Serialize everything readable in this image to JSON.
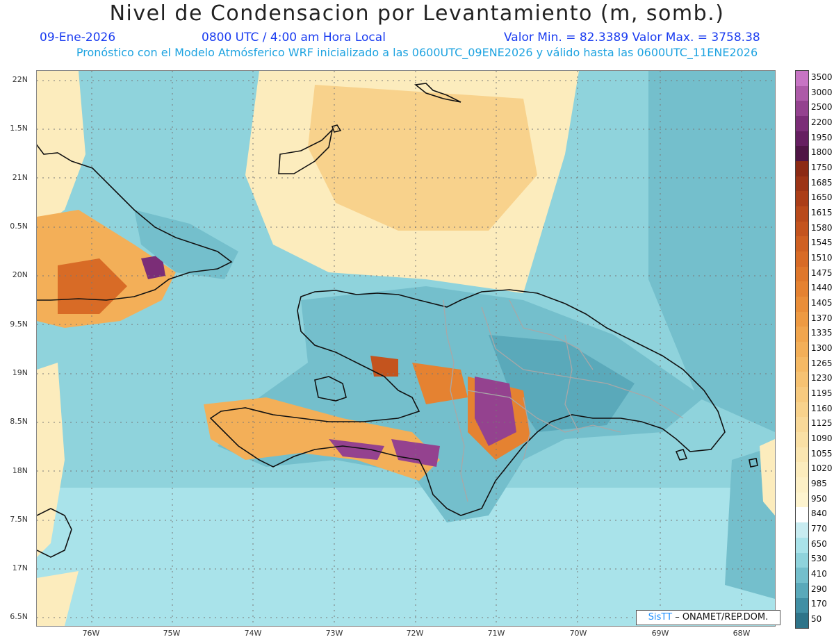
{
  "title": "Nivel de Condensacion por Levantamiento (m, somb.)",
  "date_label": "09-Ene-2026",
  "time_label": "0800 UTC / 4:00 am Hora Local",
  "value_range_label": "Valor Min. = 82.3389   Valor Max. = 3758.38",
  "forecast_label": "Pronóstico con el Modelo Atmósferico WRF inicializado a las 0600UTC_09ENE2026 y válido hasta las  0600UTC_11ENE2026",
  "credit": {
    "brand": "SisTT",
    "text": " – ONAMET/REP.DOM."
  },
  "map": {
    "lat_labels": [
      "22N",
      "1.5N",
      "21N",
      "0.5N",
      "20N",
      "9.5N",
      "19N",
      "8.5N",
      "18N",
      "7.5N",
      "17N",
      "6.5N"
    ],
    "lon_labels": [
      "76W",
      "75W",
      "74W",
      "73W",
      "72W",
      "71W",
      "70W",
      "69W",
      "68W"
    ]
  },
  "legend": {
    "levels": [
      "3500",
      "3000",
      "2500",
      "2200",
      "1950",
      "1800",
      "1750",
      "1685",
      "1650",
      "1615",
      "1580",
      "1545",
      "1510",
      "1475",
      "1440",
      "1405",
      "1370",
      "1335",
      "1300",
      "1265",
      "1230",
      "1195",
      "1160",
      "1125",
      "1090",
      "1055",
      "1020",
      "985",
      "950",
      "840",
      "770",
      "650",
      "530",
      "410",
      "290",
      "170",
      "50"
    ],
    "colors": [
      "#c774c4",
      "#ad5aa8",
      "#94428f",
      "#7b2d77",
      "#661f61",
      "#4f1545",
      "#8c2a14",
      "#9c3416",
      "#ab3e18",
      "#b94a1b",
      "#c4541e",
      "#cf6022",
      "#d86b26",
      "#df772b",
      "#e58231",
      "#ea8e39",
      "#ee9a42",
      "#f1a54d",
      "#f3af58",
      "#f5b964",
      "#f6c272",
      "#f7ca7f",
      "#f8d28c",
      "#f9d999",
      "#fae0a5",
      "#fbe6b1",
      "#fcecbd",
      "#fdf0c6",
      "#fef4cf",
      "#ffffff",
      "#c8ecf1",
      "#a9e3ea",
      "#8fd3dc",
      "#74bfcc",
      "#5aa9ba",
      "#418fa4",
      "#2e7489"
    ]
  }
}
